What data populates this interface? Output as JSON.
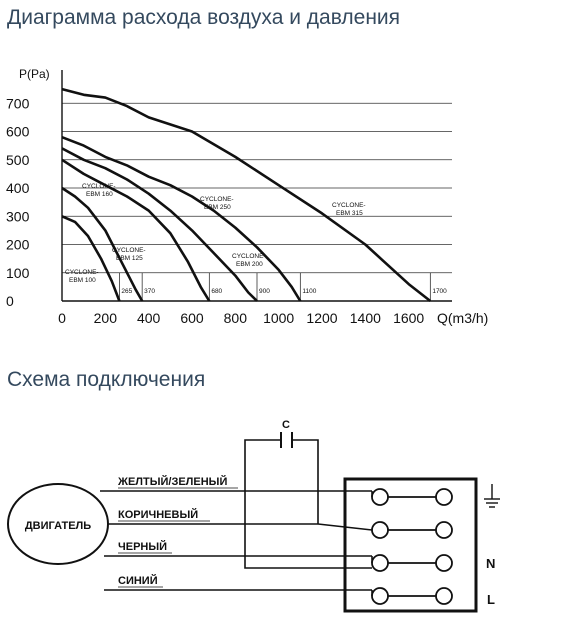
{
  "titles": {
    "chart": "Диаграмма расхода воздуха и давления",
    "scheme": "Схема подключения"
  },
  "chart_data": {
    "type": "line",
    "title": "Диаграмма расхода воздуха и давления",
    "ylabel": "P(Pa)",
    "xlabel": "Q(m3/h)",
    "xlim": [
      0,
      1800
    ],
    "ylim": [
      0,
      800
    ],
    "x_ticks": [
      0,
      200,
      400,
      600,
      800,
      1000,
      1200,
      1400,
      1600
    ],
    "y_ticks": [
      0,
      100,
      200,
      300,
      400,
      500,
      600,
      700
    ],
    "grid": true,
    "series": [
      {
        "name": "CYCLONE-EBM 100",
        "x_end_label": "265",
        "points": [
          [
            0,
            300
          ],
          [
            60,
            280
          ],
          [
            120,
            230
          ],
          [
            180,
            150
          ],
          [
            230,
            70
          ],
          [
            265,
            0
          ]
        ]
      },
      {
        "name": "CYCLONE-EBM 125",
        "x_end_label": "370",
        "points": [
          [
            0,
            400
          ],
          [
            60,
            370
          ],
          [
            120,
            330
          ],
          [
            200,
            250
          ],
          [
            280,
            130
          ],
          [
            340,
            40
          ],
          [
            370,
            0
          ]
        ]
      },
      {
        "name": "CYCLONE-EBM 160",
        "x_end_label": "680",
        "points": [
          [
            0,
            500
          ],
          [
            100,
            450
          ],
          [
            200,
            410
          ],
          [
            300,
            370
          ],
          [
            400,
            320
          ],
          [
            500,
            240
          ],
          [
            580,
            140
          ],
          [
            640,
            50
          ],
          [
            680,
            0
          ]
        ]
      },
      {
        "name": "CYCLONE-EBM 200",
        "x_end_label": "900",
        "points": [
          [
            0,
            540
          ],
          [
            100,
            500
          ],
          [
            200,
            470
          ],
          [
            300,
            430
          ],
          [
            400,
            380
          ],
          [
            500,
            320
          ],
          [
            600,
            250
          ],
          [
            700,
            170
          ],
          [
            800,
            90
          ],
          [
            860,
            30
          ],
          [
            900,
            0
          ]
        ]
      },
      {
        "name": "CYCLONE-EBM 250",
        "x_end_label": "1100",
        "points": [
          [
            0,
            580
          ],
          [
            100,
            550
          ],
          [
            200,
            510
          ],
          [
            300,
            480
          ],
          [
            400,
            440
          ],
          [
            500,
            410
          ],
          [
            600,
            370
          ],
          [
            700,
            320
          ],
          [
            800,
            260
          ],
          [
            900,
            190
          ],
          [
            1000,
            110
          ],
          [
            1060,
            50
          ],
          [
            1100,
            0
          ]
        ]
      },
      {
        "name": "CYCLONE-EBM 315",
        "x_end_label": "1700",
        "points": [
          [
            0,
            750
          ],
          [
            100,
            730
          ],
          [
            200,
            720
          ],
          [
            300,
            690
          ],
          [
            400,
            650
          ],
          [
            600,
            600
          ],
          [
            800,
            510
          ],
          [
            1000,
            410
          ],
          [
            1200,
            310
          ],
          [
            1400,
            200
          ],
          [
            1500,
            130
          ],
          [
            1600,
            60
          ],
          [
            1700,
            0
          ]
        ]
      }
    ],
    "series_labels": [
      {
        "line1": "CYCLONE-",
        "line2": "EBM 100"
      },
      {
        "line1": "CYCLONE-",
        "line2": "EBM 125"
      },
      {
        "line1": "CYCLONE-",
        "line2": "EBM 160"
      },
      {
        "line1": "CYCLONE-",
        "line2": "EBM 200"
      },
      {
        "line1": "CYCLONE-",
        "line2": "EBM 250"
      },
      {
        "line1": "CYCLONE-",
        "line2": "EBM 315"
      }
    ]
  },
  "wiring": {
    "motor": "ДВИГАТЕЛЬ",
    "capacitor": "C",
    "wires": [
      "ЖЕЛТЫЙ/ЗЕЛЕНЫЙ",
      "КОРИЧНЕВЫЙ",
      "ЧЕРНЫЙ",
      "СИНИЙ"
    ],
    "terminals": [
      "N",
      "L"
    ],
    "ground_icon": "ground-icon"
  }
}
